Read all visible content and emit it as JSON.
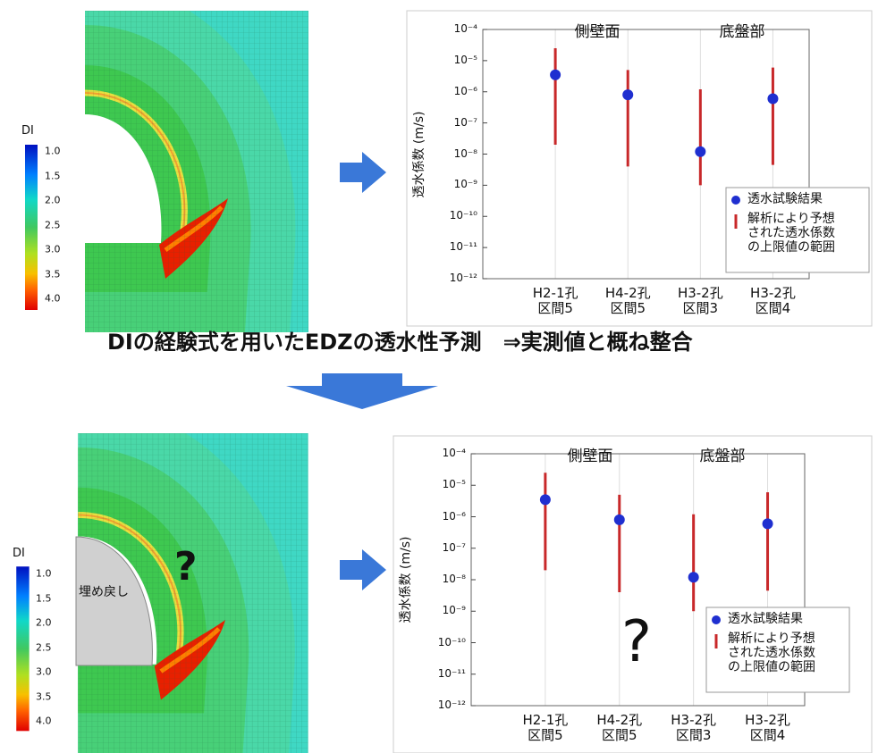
{
  "meshes": [
    {
      "colorbar": {
        "title": "DI",
        "labels": [
          "1.0",
          "1.5",
          "2.0",
          "2.5",
          "3.0",
          "3.5",
          "4.0"
        ]
      }
    },
    {
      "colorbar": {
        "title": "DI",
        "labels": [
          "1.0",
          "1.5",
          "2.0",
          "2.5",
          "3.0",
          "3.5",
          "4.0"
        ]
      },
      "fill_label": "埋め戻し",
      "annotation": "?"
    }
  ],
  "caption": "DIの経験式を用いたEDZの透水性予測　⇒実測値と概ね整合",
  "chart_data": [
    {
      "type": "errorbar",
      "ylabel": "透水係数 (m/s)",
      "log_y": true,
      "grid": true,
      "categories": [
        "H2-1孔\n区間5",
        "H4-2孔\n区間5",
        "H3-2孔\n区間3",
        "H3-2孔\n区間4"
      ],
      "annotations": [
        "側壁面",
        "底盤部"
      ],
      "ylim": [
        1e-12,
        0.0001
      ],
      "yticks": [
        {
          "value": 1e-12,
          "label": "10⁻¹²"
        },
        {
          "value": 1e-11,
          "label": "10⁻¹¹"
        },
        {
          "value": 1e-10,
          "label": "10⁻¹⁰"
        },
        {
          "value": 1e-09,
          "label": "10⁻⁹"
        },
        {
          "value": 1e-08,
          "label": "10⁻⁸"
        },
        {
          "value": 1e-07,
          "label": "10⁻⁷"
        },
        {
          "value": 1e-06,
          "label": "10⁻⁶"
        },
        {
          "value": 1e-05,
          "label": "10⁻⁵"
        },
        {
          "value": 0.0001,
          "label": "10⁻⁴"
        }
      ],
      "series": [
        {
          "name": "透水試験結果",
          "color": "#1f2fd0",
          "values": [
            3.5e-06,
            8e-07,
            1.2e-08,
            6e-07
          ]
        },
        {
          "name": "解析により予想\nされた透水係数\nの上限値の範囲",
          "color": "#c8282a",
          "low": [
            2e-08,
            4e-09,
            1e-09,
            4.5e-09
          ],
          "high": [
            2.5e-05,
            5e-06,
            1.2e-06,
            6e-06
          ]
        }
      ]
    },
    {
      "type": "errorbar",
      "ylabel": "透水係数 (m/s)",
      "log_y": true,
      "grid": true,
      "categories": [
        "H2-1孔\n区間5",
        "H4-2孔\n区間5",
        "H3-2孔\n区間3",
        "H3-2孔\n区間4"
      ],
      "annotations": [
        "側壁面",
        "底盤部",
        "?"
      ],
      "ylim": [
        1e-12,
        0.0001
      ],
      "yticks": [
        {
          "value": 1e-12,
          "label": "10⁻¹²"
        },
        {
          "value": 1e-11,
          "label": "10⁻¹¹"
        },
        {
          "value": 1e-10,
          "label": "10⁻¹⁰"
        },
        {
          "value": 1e-09,
          "label": "10⁻⁹"
        },
        {
          "value": 1e-08,
          "label": "10⁻⁸"
        },
        {
          "value": 1e-07,
          "label": "10⁻⁷"
        },
        {
          "value": 1e-06,
          "label": "10⁻⁶"
        },
        {
          "value": 1e-05,
          "label": "10⁻⁵"
        },
        {
          "value": 0.0001,
          "label": "10⁻⁴"
        }
      ],
      "series": [
        {
          "name": "透水試験結果",
          "color": "#1f2fd0",
          "values": [
            3.5e-06,
            8e-07,
            1.2e-08,
            6e-07
          ]
        },
        {
          "name": "解析により予想\nされた透水係数\nの上限値の範囲",
          "color": "#c8282a",
          "low": [
            2e-08,
            4e-09,
            1e-09,
            4.5e-09
          ],
          "high": [
            2.5e-05,
            5e-06,
            1.2e-06,
            6e-06
          ]
        }
      ]
    }
  ]
}
